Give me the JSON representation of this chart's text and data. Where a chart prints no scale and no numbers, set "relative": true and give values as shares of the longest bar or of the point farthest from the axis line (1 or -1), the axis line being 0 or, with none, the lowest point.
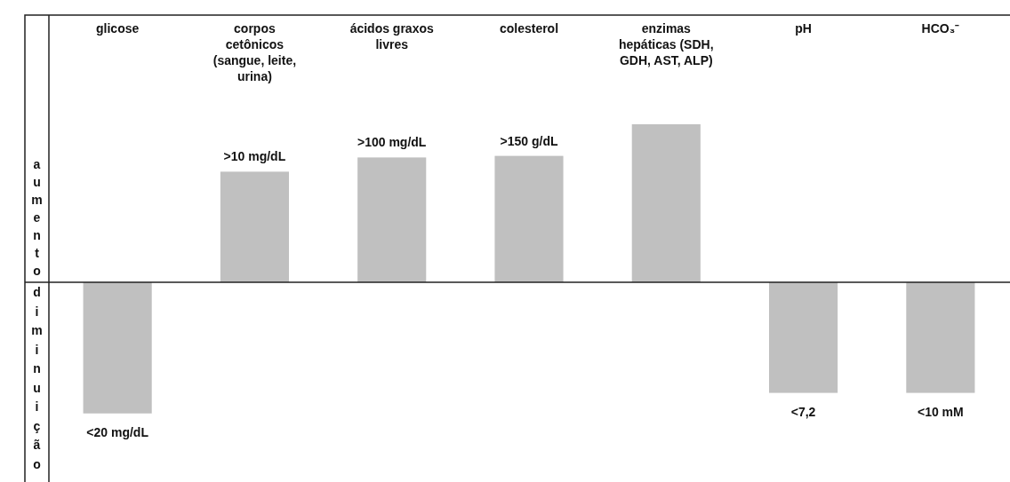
{
  "chart_data": {
    "type": "bar",
    "relative": true,
    "categories": [
      "glicose",
      "corpos cetônicos (sangue, leite, urina)",
      "ácidos graxos livres",
      "colesterol",
      "enzimas hepáticas (SDH, GDH, AST, ALP)",
      "pH",
      "HCO₃⁻"
    ],
    "values": [
      -0.83,
      0.7,
      0.79,
      0.8,
      1,
      -0.7,
      -0.7
    ],
    "color": "#c0c0c0",
    "annotations": [
      "aumento",
      "diminuição",
      {
        "text": "<20 mg/dL",
        "x": "glicose",
        "y": -0.83
      },
      {
        "text": ">10 mg/dL",
        "x": "corpos cetônicos (sangue, leite, urina)",
        "y": 0.7
      },
      {
        "text": ">100 mg/dL",
        "x": "ácidos graxos livres",
        "y": 0.79
      },
      {
        "text": ">150 g/dL",
        "x": "colesterol",
        "y": 0.8
      },
      {
        "text": "<7,2",
        "x": "pH",
        "y": -0.7
      },
      {
        "text": "<10 mM",
        "x": "HCO₃⁻",
        "y": -0.7
      }
    ]
  }
}
